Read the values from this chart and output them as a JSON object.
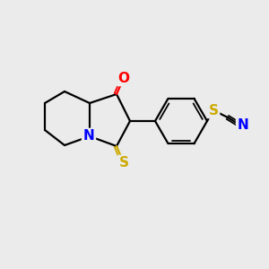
{
  "background_color": "#ebebeb",
  "bond_color": "#000000",
  "atom_colors": {
    "O": "#ff0000",
    "N": "#0000ff",
    "S": "#ccaa00",
    "C": "#000000"
  },
  "figsize": [
    3.0,
    3.0
  ],
  "dpi": 100
}
